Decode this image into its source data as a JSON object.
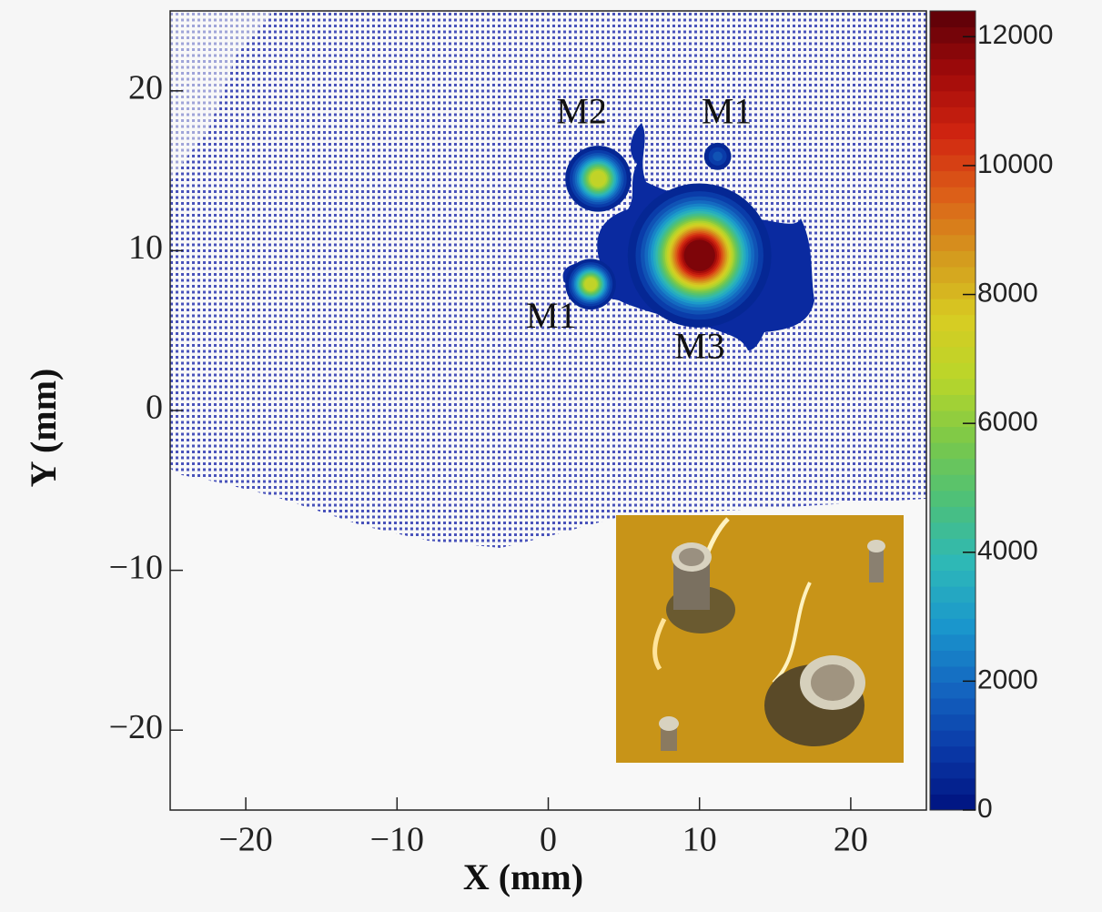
{
  "chart_data": {
    "type": "heatmap",
    "xlabel": "X (mm)",
    "ylabel": "Y (mm)",
    "xlim": [
      -25,
      25
    ],
    "ylim": [
      -25,
      25
    ],
    "xticks": [
      {
        "value": -20,
        "label": "−20"
      },
      {
        "value": -10,
        "label": "−10"
      },
      0,
      10,
      20
    ],
    "yticks": [
      {
        "value": -20,
        "label": "−20"
      },
      {
        "value": -10,
        "label": "−10"
      },
      0,
      10,
      20
    ],
    "zlim": [
      0,
      12400
    ],
    "zticks": [
      0,
      2000,
      4000,
      6000,
      8000,
      10000,
      12000
    ],
    "colormap": [
      "#00127f",
      "#0a3aa8",
      "#1466c0",
      "#1a96cc",
      "#2db8b8",
      "#4cc07a",
      "#7ac84a",
      "#b8d62a",
      "#d8cc22",
      "#d49a1e",
      "#dc6018",
      "#d02410",
      "#a00a0a",
      "#5a0008"
    ],
    "peaks": {
      "x": [
        10,
        3.3,
        2.8,
        11.2
      ],
      "y": [
        9.7,
        14.5,
        7.9,
        15.9
      ],
      "z": [
        12000,
        7000,
        7000,
        1500
      ],
      "width": [
        2.6,
        1.3,
        1.0,
        0.8
      ]
    },
    "annotations": [
      {
        "text": "M2",
        "x": 2.2,
        "y": 18.5
      },
      {
        "text": "M1",
        "x": 11.8,
        "y": 18.5
      },
      {
        "text": "M1",
        "x": 0.2,
        "y": 5.7
      },
      {
        "text": "M3",
        "x": 10.0,
        "y": 3.8
      }
    ]
  }
}
